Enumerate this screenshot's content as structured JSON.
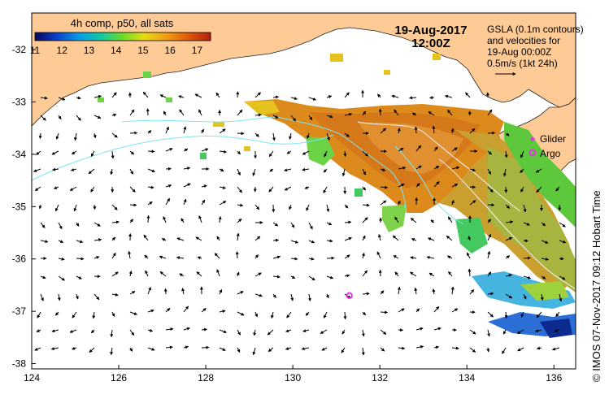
{
  "map": {
    "date": "19-Aug-2017",
    "time": "12:00Z",
    "product": "4h comp, p50, all sats",
    "gsla_note_lines": [
      "GSLA (0.1m contours)",
      "and velocities for",
      "19-Aug 00:00Z",
      "0.5m/s (1kt 24h)"
    ],
    "lon_ticks": [
      "124",
      "126",
      "128",
      "130",
      "132",
      "134",
      "136"
    ],
    "lat_ticks": [
      "-32",
      "-33",
      "-34",
      "-35",
      "-36",
      "-37",
      "-38"
    ],
    "colorbar": {
      "ticks": [
        "11",
        "12",
        "13",
        "14",
        "15",
        "16",
        "17"
      ],
      "range": [
        11,
        17.5
      ],
      "colors": [
        "#08085a",
        "#0a3cc8",
        "#0aa0e6",
        "#14c8a0",
        "#6edc28",
        "#e6dc14",
        "#f0a014",
        "#e05a0a",
        "#b41e0a"
      ]
    },
    "legend": {
      "glider_label": "Glider",
      "argo_label": "Argo",
      "marker_color": "#e632e6"
    },
    "argo_float": {
      "lon": 131.3,
      "lat": -36.7
    },
    "credit": "© IMOS 07-Nov-2017 09:12 Hobart Time",
    "colors": {
      "land": "#fecb96",
      "contour": "#7be6f0",
      "sst_warm": "#dd8a1c"
    }
  }
}
